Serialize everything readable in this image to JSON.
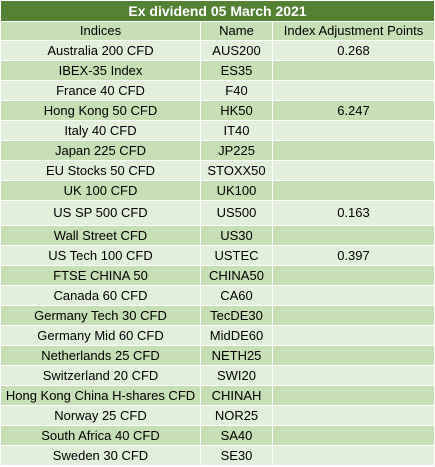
{
  "title": "Ex dividend 05 March 2021",
  "columns": {
    "indices": "Indices",
    "name": "Name",
    "points": "Index Adjustment Points"
  },
  "colors": {
    "title_bg": "#548235",
    "title_text": "#ffffff",
    "row_light": "#e2efda",
    "row_dark": "#c6dfb4"
  },
  "rows": [
    {
      "index": "Australia 200 CFD",
      "name": "AUS200",
      "points": "0.268"
    },
    {
      "index": "IBEX-35 Index",
      "name": "ES35",
      "points": ""
    },
    {
      "index": "France 40 CFD",
      "name": "F40",
      "points": ""
    },
    {
      "index": "Hong Kong 50 CFD",
      "name": "HK50",
      "points": "6.247"
    },
    {
      "index": "Italy 40 CFD",
      "name": "IT40",
      "points": ""
    },
    {
      "index": "Japan 225 CFD",
      "name": "JP225",
      "points": ""
    },
    {
      "index": "EU Stocks 50 CFD",
      "name": "STOXX50",
      "points": ""
    },
    {
      "index": "UK 100 CFD",
      "name": "UK100",
      "points": ""
    },
    {
      "index": "US SP 500 CFD",
      "name": "US500",
      "points": "0.163"
    },
    {
      "index": "Wall Street CFD",
      "name": "US30",
      "points": ""
    },
    {
      "index": "US Tech 100 CFD",
      "name": "USTEC",
      "points": "0.397"
    },
    {
      "index": "FTSE CHINA 50",
      "name": "CHINA50",
      "points": ""
    },
    {
      "index": "Canada 60 CFD",
      "name": "CA60",
      "points": ""
    },
    {
      "index": "Germany Tech 30 CFD",
      "name": "TecDE30",
      "points": ""
    },
    {
      "index": "Germany Mid 60 CFD",
      "name": "MidDE60",
      "points": ""
    },
    {
      "index": "Netherlands 25 CFD",
      "name": "NETH25",
      "points": ""
    },
    {
      "index": "Switzerland 20 CFD",
      "name": "SWI20",
      "points": ""
    },
    {
      "index": "Hong Kong China H-shares CFD",
      "name": "CHINAH",
      "points": ""
    },
    {
      "index": "Norway 25 CFD",
      "name": "NOR25",
      "points": ""
    },
    {
      "index": "South Africa 40 CFD",
      "name": "SA40",
      "points": ""
    },
    {
      "index": "Sweden 30 CFD",
      "name": "SE30",
      "points": ""
    }
  ]
}
